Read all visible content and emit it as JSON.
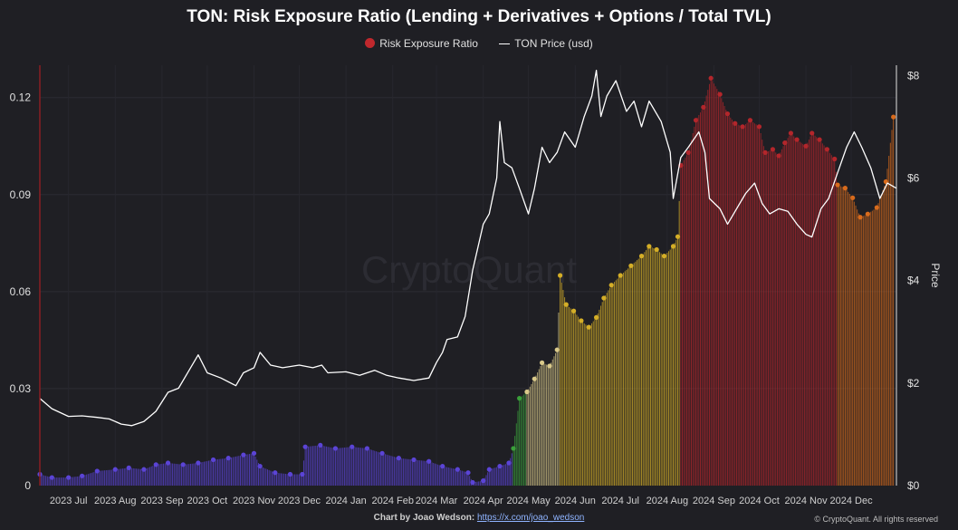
{
  "title": "TON: Risk Exposure Ratio (Lending + Derivatives + Options / Total TVL)",
  "legend": {
    "ratio_label": "Risk Exposure Ratio",
    "price_label": "TON Price (usd)"
  },
  "footer": {
    "credit_prefix": "Chart by Joao Wedson:",
    "credit_link": "https://x.com/joao_wedson",
    "copyright": "© CryptoQuant. All rights reserved"
  },
  "watermark": "CryptoQuant",
  "colors": {
    "background": "#1f1f24",
    "price_line": "#ffffff",
    "ratio_purple": "#5b44d6",
    "ratio_green": "#3aa03a",
    "ratio_khaki": "#d9c98a",
    "ratio_gold": "#d4ae27",
    "ratio_red": "#b3262b",
    "ratio_orange": "#d86b1c"
  },
  "chart_data": {
    "type": "bar",
    "x_ticks": [
      "2023 Jul",
      "2023 Aug",
      "2023 Sep",
      "2023 Oct",
      "2023 Nov",
      "2023 Dec",
      "2024 Jan",
      "2024 Feb",
      "2024 Mar",
      "2024 Apr",
      "2024 May",
      "2024 Jun",
      "2024 Jul",
      "2024 Aug",
      "2024 Sep",
      "2024 Oct",
      "2024 Nov",
      "2024 Dec"
    ],
    "x_range": [
      "2023-06-12",
      "2024-12-31"
    ],
    "y_left": {
      "ticks": [
        "0",
        "0.03",
        "0.06",
        "0.09",
        "0.12"
      ],
      "ylim": [
        0,
        0.13
      ]
    },
    "y_right": {
      "label": "Price",
      "ticks": [
        "$0",
        "$2",
        "$4",
        "$6",
        "$8"
      ],
      "ylim": [
        0,
        8.2
      ]
    },
    "grid": true,
    "legend_position": "top-center",
    "series": [
      {
        "name": "Risk Exposure Ratio",
        "kind": "bar+dots",
        "points": [
          [
            "2023-06-12",
            0.0035
          ],
          [
            "2023-06-20",
            0.0025
          ],
          [
            "2023-07-01",
            0.0025
          ],
          [
            "2023-07-10",
            0.003
          ],
          [
            "2023-07-20",
            0.0045
          ],
          [
            "2023-08-01",
            0.005
          ],
          [
            "2023-08-10",
            0.0055
          ],
          [
            "2023-08-20",
            0.005
          ],
          [
            "2023-08-28",
            0.0065
          ],
          [
            "2023-09-05",
            0.007
          ],
          [
            "2023-09-15",
            0.0065
          ],
          [
            "2023-09-25",
            0.007
          ],
          [
            "2023-10-05",
            0.008
          ],
          [
            "2023-10-15",
            0.0085
          ],
          [
            "2023-10-25",
            0.0095
          ],
          [
            "2023-11-01",
            0.01
          ],
          [
            "2023-11-05",
            0.006
          ],
          [
            "2023-11-15",
            0.004
          ],
          [
            "2023-11-25",
            0.0035
          ],
          [
            "2023-12-03",
            0.0035
          ],
          [
            "2023-12-05",
            0.012
          ],
          [
            "2023-12-15",
            0.0125
          ],
          [
            "2023-12-25",
            0.0115
          ],
          [
            "2024-01-05",
            0.012
          ],
          [
            "2024-01-15",
            0.0115
          ],
          [
            "2024-01-25",
            0.01
          ],
          [
            "2024-02-05",
            0.0085
          ],
          [
            "2024-02-15",
            0.008
          ],
          [
            "2024-02-25",
            0.0075
          ],
          [
            "2024-03-05",
            0.006
          ],
          [
            "2024-03-15",
            0.005
          ],
          [
            "2024-03-22",
            0.004
          ],
          [
            "2024-03-25",
            0.001
          ],
          [
            "2024-04-01",
            0.0015
          ],
          [
            "2024-04-05",
            0.005
          ],
          [
            "2024-04-12",
            0.006
          ],
          [
            "2024-04-18",
            0.007
          ],
          [
            "2024-04-21",
            0.0115
          ],
          [
            "2024-04-25",
            0.027
          ],
          [
            "2024-04-30",
            0.029
          ],
          [
            "2024-05-05",
            0.033
          ],
          [
            "2024-05-10",
            0.038
          ],
          [
            "2024-05-15",
            0.037
          ],
          [
            "2024-05-20",
            0.042
          ],
          [
            "2024-05-22",
            0.065
          ],
          [
            "2024-05-26",
            0.056
          ],
          [
            "2024-05-31",
            0.054
          ],
          [
            "2024-06-05",
            0.051
          ],
          [
            "2024-06-10",
            0.049
          ],
          [
            "2024-06-15",
            0.052
          ],
          [
            "2024-06-20",
            0.058
          ],
          [
            "2024-06-25",
            0.062
          ],
          [
            "2024-07-01",
            0.065
          ],
          [
            "2024-07-08",
            0.068
          ],
          [
            "2024-07-15",
            0.071
          ],
          [
            "2024-07-20",
            0.074
          ],
          [
            "2024-07-25",
            0.073
          ],
          [
            "2024-07-30",
            0.071
          ],
          [
            "2024-08-05",
            0.074
          ],
          [
            "2024-08-08",
            0.077
          ],
          [
            "2024-08-10",
            0.099
          ],
          [
            "2024-08-15",
            0.103
          ],
          [
            "2024-08-20",
            0.113
          ],
          [
            "2024-08-25",
            0.117
          ],
          [
            "2024-08-30",
            0.126
          ],
          [
            "2024-09-05",
            0.121
          ],
          [
            "2024-09-10",
            0.115
          ],
          [
            "2024-09-15",
            0.112
          ],
          [
            "2024-09-20",
            0.111
          ],
          [
            "2024-09-25",
            0.113
          ],
          [
            "2024-10-01",
            0.111
          ],
          [
            "2024-10-05",
            0.103
          ],
          [
            "2024-10-10",
            0.104
          ],
          [
            "2024-10-14",
            0.102
          ],
          [
            "2024-10-18",
            0.106
          ],
          [
            "2024-10-22",
            0.109
          ],
          [
            "2024-10-26",
            0.107
          ],
          [
            "2024-11-01",
            0.105
          ],
          [
            "2024-11-05",
            0.109
          ],
          [
            "2024-11-10",
            0.107
          ],
          [
            "2024-11-15",
            0.104
          ],
          [
            "2024-11-20",
            0.101
          ],
          [
            "2024-11-22",
            0.093
          ],
          [
            "2024-11-27",
            0.092
          ],
          [
            "2024-12-02",
            0.089
          ],
          [
            "2024-12-07",
            0.083
          ],
          [
            "2024-12-12",
            0.084
          ],
          [
            "2024-12-18",
            0.086
          ],
          [
            "2024-12-24",
            0.094
          ],
          [
            "2024-12-29",
            0.114
          ]
        ]
      },
      {
        "name": "TON Price (usd)",
        "kind": "line",
        "points": [
          [
            "2023-06-12",
            1.7
          ],
          [
            "2023-06-20",
            1.5
          ],
          [
            "2023-07-01",
            1.35
          ],
          [
            "2023-07-10",
            1.36
          ],
          [
            "2023-07-20",
            1.33
          ],
          [
            "2023-07-28",
            1.3
          ],
          [
            "2023-08-05",
            1.2
          ],
          [
            "2023-08-12",
            1.17
          ],
          [
            "2023-08-20",
            1.25
          ],
          [
            "2023-08-28",
            1.45
          ],
          [
            "2023-09-05",
            1.82
          ],
          [
            "2023-09-12",
            1.9
          ],
          [
            "2023-09-20",
            2.3
          ],
          [
            "2023-09-25",
            2.55
          ],
          [
            "2023-10-01",
            2.2
          ],
          [
            "2023-10-10",
            2.1
          ],
          [
            "2023-10-20",
            1.95
          ],
          [
            "2023-10-25",
            2.2
          ],
          [
            "2023-11-01",
            2.3
          ],
          [
            "2023-11-05",
            2.6
          ],
          [
            "2023-11-12",
            2.35
          ],
          [
            "2023-11-20",
            2.3
          ],
          [
            "2023-12-01",
            2.35
          ],
          [
            "2023-12-10",
            2.3
          ],
          [
            "2023-12-16",
            2.35
          ],
          [
            "2023-12-20",
            2.2
          ],
          [
            "2024-01-01",
            2.22
          ],
          [
            "2024-01-10",
            2.15
          ],
          [
            "2024-01-20",
            2.25
          ],
          [
            "2024-01-28",
            2.15
          ],
          [
            "2024-02-05",
            2.1
          ],
          [
            "2024-02-15",
            2.05
          ],
          [
            "2024-02-25",
            2.1
          ],
          [
            "2024-03-01",
            2.4
          ],
          [
            "2024-03-05",
            2.6
          ],
          [
            "2024-03-08",
            2.85
          ],
          [
            "2024-03-15",
            2.9
          ],
          [
            "2024-03-20",
            3.3
          ],
          [
            "2024-03-25",
            4.2
          ],
          [
            "2024-04-01",
            5.1
          ],
          [
            "2024-04-05",
            5.3
          ],
          [
            "2024-04-10",
            6.0
          ],
          [
            "2024-04-12",
            7.1
          ],
          [
            "2024-04-15",
            6.3
          ],
          [
            "2024-04-20",
            6.2
          ],
          [
            "2024-04-25",
            5.8
          ],
          [
            "2024-05-01",
            5.3
          ],
          [
            "2024-05-05",
            5.8
          ],
          [
            "2024-05-10",
            6.6
          ],
          [
            "2024-05-15",
            6.3
          ],
          [
            "2024-05-20",
            6.5
          ],
          [
            "2024-05-25",
            6.9
          ],
          [
            "2024-06-01",
            6.6
          ],
          [
            "2024-06-07",
            7.2
          ],
          [
            "2024-06-12",
            7.6
          ],
          [
            "2024-06-15",
            8.1
          ],
          [
            "2024-06-18",
            7.2
          ],
          [
            "2024-06-22",
            7.6
          ],
          [
            "2024-06-28",
            7.9
          ],
          [
            "2024-07-05",
            7.3
          ],
          [
            "2024-07-10",
            7.5
          ],
          [
            "2024-07-15",
            7.0
          ],
          [
            "2024-07-20",
            7.5
          ],
          [
            "2024-07-28",
            7.1
          ],
          [
            "2024-08-03",
            6.5
          ],
          [
            "2024-08-05",
            5.6
          ],
          [
            "2024-08-10",
            6.4
          ],
          [
            "2024-08-15",
            6.6
          ],
          [
            "2024-08-22",
            6.9
          ],
          [
            "2024-08-26",
            6.5
          ],
          [
            "2024-08-29",
            5.6
          ],
          [
            "2024-09-05",
            5.4
          ],
          [
            "2024-09-10",
            5.1
          ],
          [
            "2024-09-16",
            5.4
          ],
          [
            "2024-09-22",
            5.7
          ],
          [
            "2024-09-28",
            5.9
          ],
          [
            "2024-10-03",
            5.5
          ],
          [
            "2024-10-08",
            5.3
          ],
          [
            "2024-10-14",
            5.4
          ],
          [
            "2024-10-20",
            5.35
          ],
          [
            "2024-10-26",
            5.1
          ],
          [
            "2024-11-01",
            4.9
          ],
          [
            "2024-11-05",
            4.85
          ],
          [
            "2024-11-11",
            5.4
          ],
          [
            "2024-11-16",
            5.6
          ],
          [
            "2024-11-22",
            6.1
          ],
          [
            "2024-11-28",
            6.6
          ],
          [
            "2024-12-03",
            6.9
          ],
          [
            "2024-12-08",
            6.6
          ],
          [
            "2024-12-14",
            6.2
          ],
          [
            "2024-12-20",
            5.6
          ],
          [
            "2024-12-25",
            5.9
          ],
          [
            "2024-12-31",
            5.8
          ]
        ]
      }
    ]
  }
}
